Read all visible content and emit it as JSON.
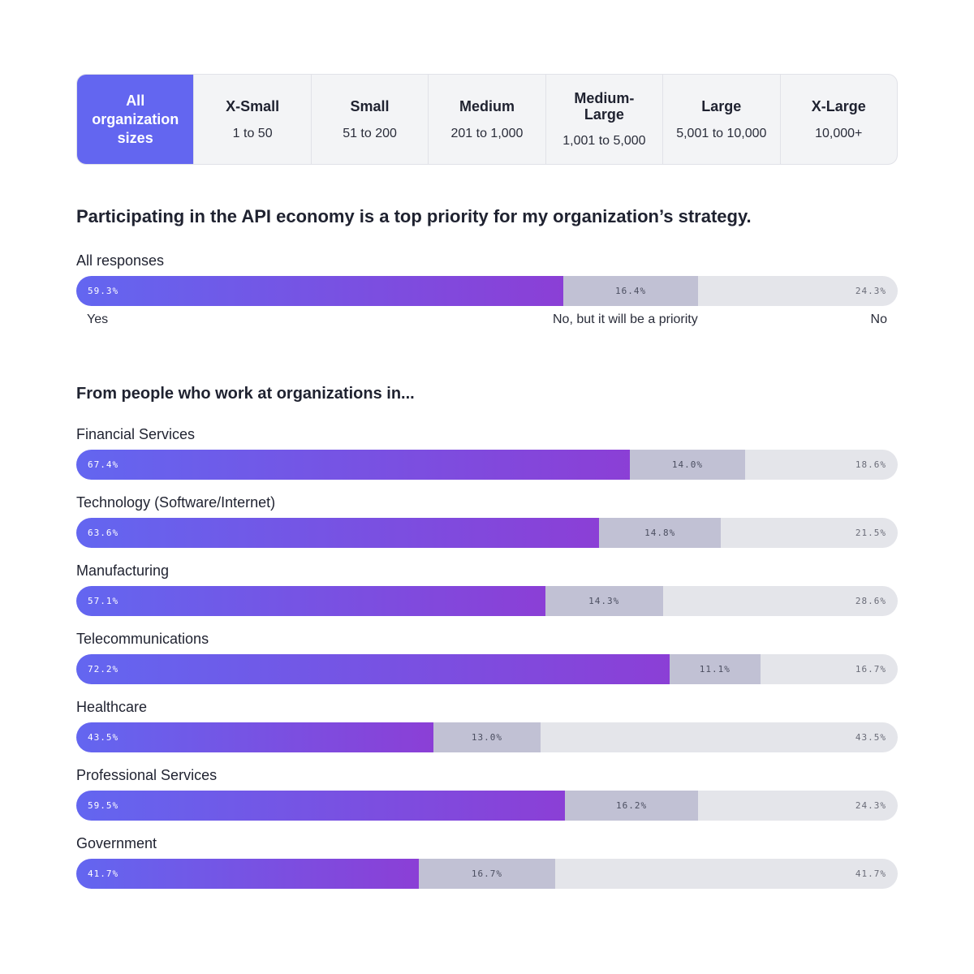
{
  "tabs": [
    {
      "name": "All organization sizes",
      "range": "",
      "active": true
    },
    {
      "name": "X-Small",
      "range": "1 to 50",
      "active": false
    },
    {
      "name": "Small",
      "range": "51 to 200",
      "active": false
    },
    {
      "name": "Medium",
      "range": "201 to 1,000",
      "active": false
    },
    {
      "name": "Medium-Large",
      "range": "1,001 to 5,000",
      "active": false
    },
    {
      "name": "Large",
      "range": "5,001 to 10,000",
      "active": false
    },
    {
      "name": "X-Large",
      "range": "10,000+",
      "active": false
    }
  ],
  "question": "Participating in the API economy is a top priority for my organization’s strategy.",
  "subheading": "From people who work at organizations in...",
  "colors": {
    "yes_start": "#6366f0",
    "yes_end": "#8b3fd6",
    "will": "#c1c1d4",
    "no": "#e4e5ea",
    "active_tab": "#6366f0"
  },
  "chart_data": {
    "type": "bar",
    "orientation": "horizontal-stacked",
    "unit": "%",
    "legend": [
      "Yes",
      "No, but it will be a priority",
      "No"
    ],
    "rows": [
      {
        "label": "All responses",
        "values": [
          59.3,
          16.4,
          24.3
        ],
        "texts": [
          "59.3%",
          "16.4%",
          "24.3%"
        ]
      },
      {
        "label": "Financial Services",
        "values": [
          67.4,
          14.0,
          18.6
        ],
        "texts": [
          "67.4%",
          "14.0%",
          "18.6%"
        ]
      },
      {
        "label": "Technology (Software/Internet)",
        "values": [
          63.6,
          14.8,
          21.5
        ],
        "texts": [
          "63.6%",
          "14.8%",
          "21.5%"
        ]
      },
      {
        "label": "Manufacturing",
        "values": [
          57.1,
          14.3,
          28.6
        ],
        "texts": [
          "57.1%",
          "14.3%",
          "28.6%"
        ]
      },
      {
        "label": "Telecommunications",
        "values": [
          72.2,
          11.1,
          16.7
        ],
        "texts": [
          "72.2%",
          "11.1%",
          "16.7%"
        ]
      },
      {
        "label": "Healthcare",
        "values": [
          43.5,
          13.0,
          43.5
        ],
        "texts": [
          "43.5%",
          "13.0%",
          "43.5%"
        ]
      },
      {
        "label": "Professional Services",
        "values": [
          59.5,
          16.2,
          24.3
        ],
        "texts": [
          "59.5%",
          "16.2%",
          "24.3%"
        ]
      },
      {
        "label": "Government",
        "values": [
          41.7,
          16.7,
          41.7
        ],
        "texts": [
          "41.7%",
          "16.7%",
          "41.7%"
        ]
      }
    ]
  }
}
